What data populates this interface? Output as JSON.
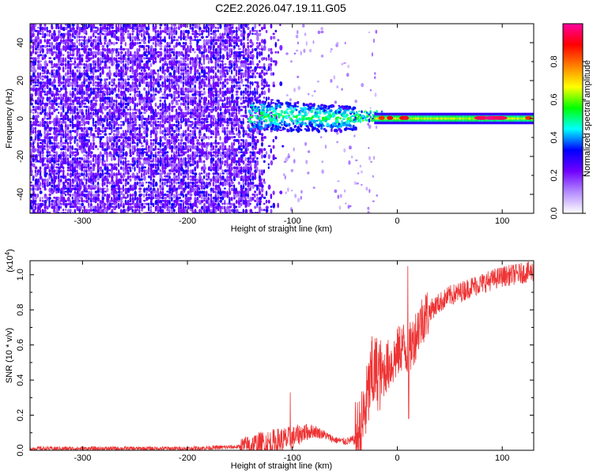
{
  "title": "C2E2.2026.047.19.11.G05",
  "chart_data": [
    {
      "type": "heatmap",
      "panel": "top",
      "xlabel": "Height of straight line (km)",
      "ylabel": "Frequency (Hz)",
      "xlim": [
        -350,
        130
      ],
      "ylim": [
        -50,
        50
      ],
      "xticks": [
        -300,
        -200,
        -100,
        0,
        100
      ],
      "xtick_labels": [
        "-300",
        "-200",
        "-100",
        "0",
        "100"
      ],
      "yticks": [
        -40,
        -20,
        0,
        20,
        40
      ],
      "ytick_labels": [
        "-40",
        "-20",
        "0",
        "20",
        "40"
      ],
      "colorbar": {
        "label": "Normalized spectral amplitude",
        "range": [
          0,
          1
        ],
        "ticks": [
          0.0,
          0.2,
          0.4,
          0.6,
          0.8
        ],
        "tick_labels": [
          "0.0",
          "0.2",
          "0.4",
          "0.6",
          "0.8"
        ],
        "colors": [
          "#ffffff",
          "#b48cff",
          "#7000ff",
          "#0000ff",
          "#00ffff",
          "#00ff00",
          "#ffff00",
          "#ff8000",
          "#ff0000",
          "#ff00a0"
        ]
      },
      "regions": [
        {
          "x_range": [
            -350,
            -145
          ],
          "freq_range": [
            -50,
            50
          ],
          "amplitude": 0.05,
          "description": "broadband noise"
        },
        {
          "x_range": [
            -145,
            -110
          ],
          "freq_range": [
            -50,
            50
          ],
          "amplitude": 0.03,
          "description": "fading noise"
        },
        {
          "x_range": [
            -140,
            -40
          ],
          "freq_range": [
            -10,
            8
          ],
          "amplitude": 0.3,
          "description": "signal acquisition"
        },
        {
          "x_range": [
            -40,
            130
          ],
          "freq_range": [
            -2,
            3
          ],
          "amplitude": 0.6,
          "description": "tracked carrier"
        }
      ]
    },
    {
      "type": "line",
      "panel": "bottom",
      "xlabel": "Height of straight line (km)",
      "ylabel": "SNR (10 * v/v)",
      "scale_label": "(x10",
      "scale_exponent": "4",
      "scale_suffix": ")",
      "xlim": [
        -350,
        130
      ],
      "ylim": [
        0,
        1.08
      ],
      "xticks": [
        -300,
        -200,
        -100,
        0,
        100
      ],
      "xtick_labels": [
        "-300",
        "-200",
        "-100",
        "0",
        "100"
      ],
      "yticks": [
        0.0,
        0.2,
        0.4,
        0.6,
        0.8,
        1.0
      ],
      "ytick_labels": [
        "0.0",
        "0.2",
        "0.4",
        "0.6",
        "0.8",
        "1.0"
      ],
      "color": "#ee3333",
      "series": [
        {
          "name": "SNR",
          "x": [
            -350,
            -300,
            -250,
            -200,
            -150,
            -120,
            -100,
            -90,
            -80,
            -70,
            -60,
            -50,
            -40,
            -35,
            -30,
            -25,
            -20,
            -15,
            -10,
            -5,
            0,
            5,
            10,
            15,
            20,
            25,
            30,
            40,
            50,
            60,
            70,
            80,
            90,
            100,
            110,
            120,
            130
          ],
          "values": [
            0.01,
            0.01,
            0.01,
            0.01,
            0.02,
            0.04,
            0.07,
            0.1,
            0.11,
            0.09,
            0.06,
            0.05,
            0.06,
            0.1,
            0.25,
            0.4,
            0.45,
            0.42,
            0.48,
            0.5,
            0.55,
            0.6,
            0.55,
            0.62,
            0.7,
            0.76,
            0.79,
            0.84,
            0.88,
            0.9,
            0.93,
            0.95,
            0.97,
            0.99,
            1.0,
            1.01,
            1.02
          ]
        }
      ],
      "spikes": [
        {
          "x": 10,
          "value": 1.05
        },
        {
          "x": 10.8,
          "value": 0.18
        },
        {
          "x": -24,
          "value": 0.65
        },
        {
          "x": -102,
          "value": 0.33
        }
      ]
    }
  ]
}
